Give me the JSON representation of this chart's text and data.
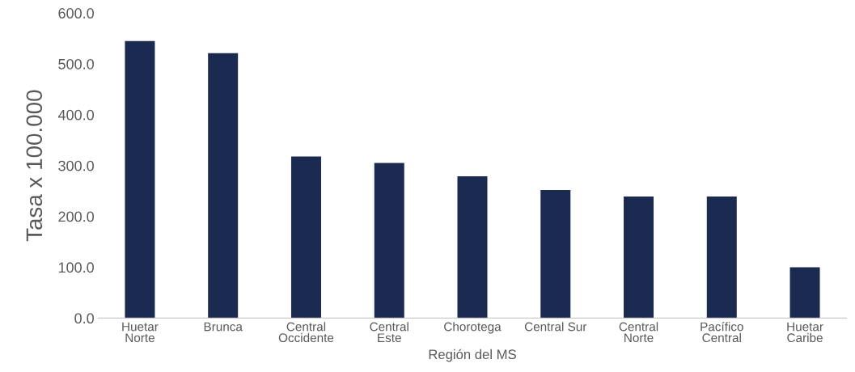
{
  "chart_data": {
    "type": "bar",
    "xlabel": "Región del MS",
    "ylabel": "Tasa x 100.000",
    "categories": [
      "Huetar\nNorte",
      "Brunca",
      "Central\nOccidente",
      "Central\nEste",
      "Chorotega",
      "Central Sur",
      "Central\nNorte",
      "Pacífico\nCentral",
      "Huetar\nCaribe"
    ],
    "values": [
      545,
      521,
      318,
      305,
      279,
      252,
      239,
      239,
      100
    ],
    "color": "#1a2a50",
    "ylim": [
      0,
      600
    ],
    "yticks": [
      {
        "value": 0,
        "label": "0.0"
      },
      {
        "value": 100,
        "label": "100.0"
      },
      {
        "value": 200,
        "label": "200.0"
      },
      {
        "value": 300,
        "label": "300.0"
      },
      {
        "value": 400,
        "label": "400.0"
      },
      {
        "value": 500,
        "label": "500.0"
      },
      {
        "value": 600,
        "label": "600.0"
      }
    ],
    "grid": false
  }
}
